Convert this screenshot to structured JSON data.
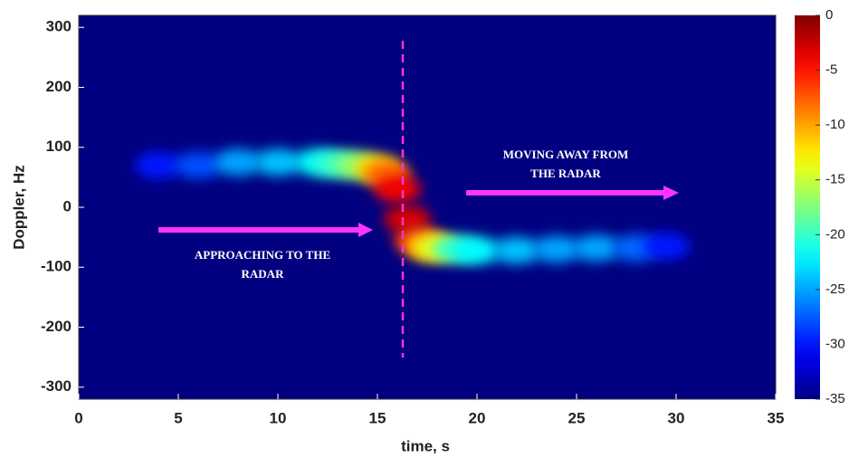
{
  "chart_data": {
    "type": "spectrogram",
    "x_label": "time, s",
    "y_label": "Doppler, Hz",
    "xlim": [
      0,
      35
    ],
    "xticks": [
      0,
      5,
      10,
      15,
      20,
      25,
      30,
      35
    ],
    "ylim": [
      -320,
      320
    ],
    "yticks": [
      -300,
      -200,
      -100,
      0,
      100,
      200,
      300
    ],
    "clim": [
      -35,
      0
    ],
    "cticks": [
      -35,
      -30,
      -25,
      -20,
      -15,
      -10,
      -5,
      0
    ],
    "colormap": "jet",
    "x": [
      4,
      6,
      8,
      10,
      12,
      13,
      14,
      15,
      15.5,
      16,
      16.5,
      17,
      17.5,
      18,
      19,
      20,
      22,
      24,
      26,
      28,
      29.5
    ],
    "values": [
      70,
      70,
      75,
      75,
      75,
      72,
      70,
      65,
      55,
      30,
      -20,
      -55,
      -65,
      -68,
      -70,
      -72,
      -72,
      -70,
      -68,
      -68,
      -65
    ],
    "power": [
      -30,
      -28,
      -25,
      -24,
      -22,
      -20,
      -17,
      -12,
      -8,
      -4,
      -3,
      -6,
      -10,
      -14,
      -20,
      -22,
      -24,
      -25,
      -25,
      -27,
      -30
    ],
    "annotations": [
      [
        "MOVING AWAY FROM",
        "THE RADAR"
      ],
      [
        "APPROACHING TO THE",
        "RADAR"
      ]
    ]
  }
}
